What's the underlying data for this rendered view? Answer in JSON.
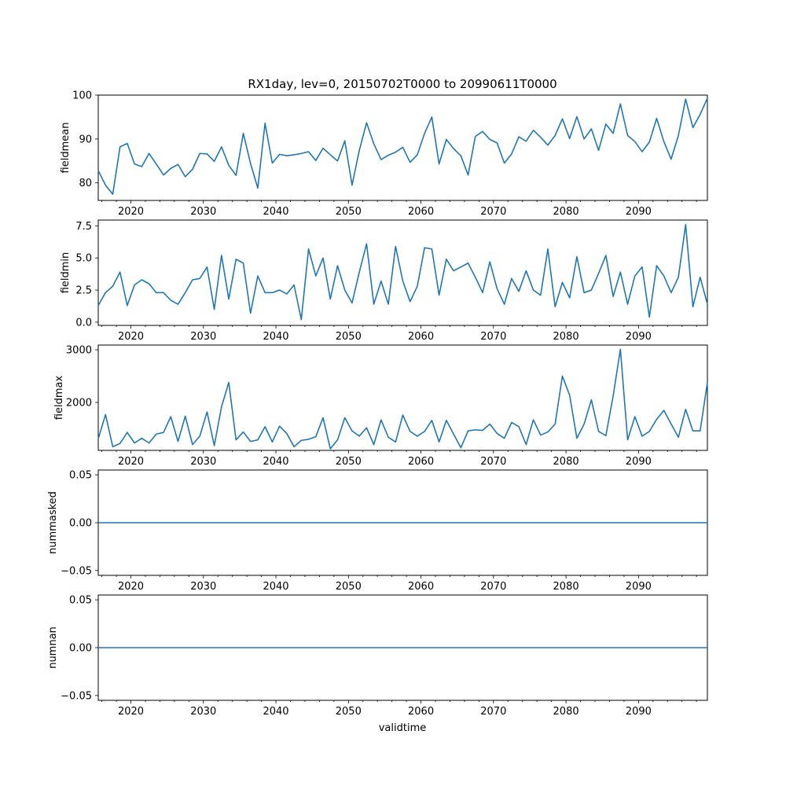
{
  "title": "RX1day, lev=0, 20150702T0000 to 20990611T0000",
  "xlabel": "validtime",
  "line_color": "#1f77b4",
  "chart_data": [
    {
      "type": "line",
      "ylabel": "fieldmean",
      "xlim": [
        2015.5,
        2099.5
      ],
      "ylim": [
        76,
        100
      ],
      "yticks": [
        80,
        90,
        100
      ],
      "ytick_labels": [
        "80",
        "90",
        "100"
      ],
      "xticks": [
        2020,
        2030,
        2040,
        2050,
        2060,
        2070,
        2080,
        2090
      ],
      "xtick_labels": [
        "2020",
        "2030",
        "2040",
        "2050",
        "2060",
        "2070",
        "2080",
        "2090"
      ],
      "x": [
        2015.5,
        2016.5,
        2017.5,
        2018.5,
        2019.5,
        2020.5,
        2021.5,
        2022.5,
        2023.5,
        2024.5,
        2025.5,
        2026.5,
        2027.5,
        2028.5,
        2029.5,
        2030.5,
        2031.5,
        2032.5,
        2033.5,
        2034.5,
        2035.5,
        2036.5,
        2037.5,
        2038.5,
        2039.5,
        2040.5,
        2041.5,
        2042.5,
        2043.5,
        2044.5,
        2045.5,
        2046.5,
        2047.5,
        2048.5,
        2049.5,
        2050.5,
        2051.5,
        2052.5,
        2053.5,
        2054.5,
        2055.5,
        2056.5,
        2057.5,
        2058.5,
        2059.5,
        2060.5,
        2061.5,
        2062.5,
        2063.5,
        2064.5,
        2065.5,
        2066.5,
        2067.5,
        2068.5,
        2069.5,
        2070.5,
        2071.5,
        2072.5,
        2073.5,
        2074.5,
        2075.5,
        2076.5,
        2077.5,
        2078.5,
        2079.5,
        2080.5,
        2081.5,
        2082.5,
        2083.5,
        2084.5,
        2085.5,
        2086.5,
        2087.5,
        2088.5,
        2089.5,
        2090.5,
        2091.5,
        2092.5,
        2093.5,
        2094.5,
        2095.5,
        2096.5,
        2097.5,
        2098.5,
        2099.5
      ],
      "values": [
        82.8,
        79.5,
        77.4,
        88.2,
        89.0,
        84.3,
        83.7,
        86.7,
        84.3,
        81.8,
        83.3,
        84.2,
        81.4,
        83.1,
        86.7,
        86.6,
        84.9,
        88.2,
        84.0,
        81.7,
        91.3,
        84.4,
        78.8,
        93.6,
        84.5,
        86.5,
        86.2,
        86.4,
        86.7,
        87.1,
        85.1,
        87.9,
        86.4,
        85.0,
        89.6,
        79.5,
        87.4,
        93.7,
        88.9,
        85.3,
        86.3,
        87.0,
        88.1,
        84.7,
        86.4,
        91.3,
        95.0,
        84.3,
        89.9,
        87.8,
        86.2,
        81.8,
        90.6,
        91.7,
        89.9,
        89.1,
        84.5,
        86.6,
        90.5,
        89.5,
        92.0,
        90.4,
        88.6,
        90.8,
        94.6,
        90.1,
        95.1,
        90.0,
        92.3,
        87.4,
        93.4,
        91.3,
        98.0,
        90.8,
        89.4,
        87.1,
        89.3,
        94.7,
        89.4,
        85.4,
        90.8,
        99.1,
        92.6,
        95.6,
        99.3
      ]
    },
    {
      "type": "line",
      "ylabel": "fieldmin",
      "xlim": [
        2015.5,
        2099.5
      ],
      "ylim": [
        -0.25,
        7.95
      ],
      "yticks": [
        0,
        2.5,
        5,
        7.5
      ],
      "ytick_labels": [
        "0.0",
        "2.5",
        "5.0",
        "7.5"
      ],
      "xticks": [
        2020,
        2030,
        2040,
        2050,
        2060,
        2070,
        2080,
        2090
      ],
      "xtick_labels": [
        "2020",
        "2030",
        "2040",
        "2050",
        "2060",
        "2070",
        "2080",
        "2090"
      ],
      "x": [
        2015.5,
        2016.5,
        2017.5,
        2018.5,
        2019.5,
        2020.5,
        2021.5,
        2022.5,
        2023.5,
        2024.5,
        2025.5,
        2026.5,
        2027.5,
        2028.5,
        2029.5,
        2030.5,
        2031.5,
        2032.5,
        2033.5,
        2034.5,
        2035.5,
        2036.5,
        2037.5,
        2038.5,
        2039.5,
        2040.5,
        2041.5,
        2042.5,
        2043.5,
        2044.5,
        2045.5,
        2046.5,
        2047.5,
        2048.5,
        2049.5,
        2050.5,
        2051.5,
        2052.5,
        2053.5,
        2054.5,
        2055.5,
        2056.5,
        2057.5,
        2058.5,
        2059.5,
        2060.5,
        2061.5,
        2062.5,
        2063.5,
        2064.5,
        2065.5,
        2066.5,
        2067.5,
        2068.5,
        2069.5,
        2070.5,
        2071.5,
        2072.5,
        2073.5,
        2074.5,
        2075.5,
        2076.5,
        2077.5,
        2078.5,
        2079.5,
        2080.5,
        2081.5,
        2082.5,
        2083.5,
        2084.5,
        2085.5,
        2086.5,
        2087.5,
        2088.5,
        2089.5,
        2090.5,
        2091.5,
        2092.5,
        2093.5,
        2094.5,
        2095.5,
        2096.5,
        2097.5,
        2098.5,
        2099.5
      ],
      "values": [
        1.3,
        2.3,
        2.8,
        3.9,
        1.3,
        2.9,
        3.3,
        3.0,
        2.3,
        2.3,
        1.7,
        1.4,
        2.3,
        3.3,
        3.4,
        4.3,
        1.0,
        5.2,
        1.8,
        4.9,
        4.6,
        0.7,
        3.6,
        2.3,
        2.3,
        2.5,
        2.2,
        2.9,
        0.2,
        5.7,
        3.6,
        5.0,
        1.8,
        4.4,
        2.5,
        1.5,
        3.9,
        6.1,
        1.4,
        3.2,
        1.4,
        5.9,
        3.2,
        1.6,
        2.8,
        5.8,
        5.7,
        2.1,
        4.9,
        4.0,
        4.3,
        4.6,
        3.5,
        2.3,
        4.7,
        2.6,
        1.4,
        3.4,
        2.4,
        4.0,
        2.5,
        2.1,
        5.7,
        1.2,
        3.1,
        1.9,
        5.1,
        2.3,
        2.5,
        3.8,
        5.2,
        2.0,
        3.9,
        1.4,
        3.6,
        4.3,
        0.4,
        4.4,
        3.6,
        2.3,
        3.5,
        7.6,
        1.2,
        3.5,
        1.4
      ]
    },
    {
      "type": "line",
      "ylabel": "fieldmax",
      "xlim": [
        2015.5,
        2099.5
      ],
      "ylim": [
        1090,
        3090
      ],
      "yticks": [
        2000,
        3000
      ],
      "ytick_labels": [
        "2000",
        "3000"
      ],
      "xticks": [
        2020,
        2030,
        2040,
        2050,
        2060,
        2070,
        2080,
        2090
      ],
      "xtick_labels": [
        "2020",
        "2030",
        "2040",
        "2050",
        "2060",
        "2070",
        "2080",
        "2090"
      ],
      "x": [
        2015.5,
        2016.5,
        2017.5,
        2018.5,
        2019.5,
        2020.5,
        2021.5,
        2022.5,
        2023.5,
        2024.5,
        2025.5,
        2026.5,
        2027.5,
        2028.5,
        2029.5,
        2030.5,
        2031.5,
        2032.5,
        2033.5,
        2034.5,
        2035.5,
        2036.5,
        2037.5,
        2038.5,
        2039.5,
        2040.5,
        2041.5,
        2042.5,
        2043.5,
        2044.5,
        2045.5,
        2046.5,
        2047.5,
        2048.5,
        2049.5,
        2050.5,
        2051.5,
        2052.5,
        2053.5,
        2054.5,
        2055.5,
        2056.5,
        2057.5,
        2058.5,
        2059.5,
        2060.5,
        2061.5,
        2062.5,
        2063.5,
        2064.5,
        2065.5,
        2066.5,
        2067.5,
        2068.5,
        2069.5,
        2070.5,
        2071.5,
        2072.5,
        2073.5,
        2074.5,
        2075.5,
        2076.5,
        2077.5,
        2078.5,
        2079.5,
        2080.5,
        2081.5,
        2082.5,
        2083.5,
        2084.5,
        2085.5,
        2086.5,
        2087.5,
        2088.5,
        2089.5,
        2090.5,
        2091.5,
        2092.5,
        2093.5,
        2094.5,
        2095.5,
        2096.5,
        2097.5,
        2098.5,
        2099.5
      ],
      "values": [
        1310,
        1770,
        1160,
        1220,
        1430,
        1230,
        1320,
        1230,
        1400,
        1430,
        1730,
        1260,
        1740,
        1200,
        1360,
        1820,
        1180,
        1920,
        2380,
        1290,
        1440,
        1260,
        1290,
        1540,
        1250,
        1550,
        1410,
        1160,
        1280,
        1300,
        1350,
        1710,
        1120,
        1290,
        1710,
        1460,
        1360,
        1520,
        1200,
        1670,
        1340,
        1250,
        1760,
        1450,
        1360,
        1450,
        1660,
        1250,
        1660,
        1400,
        1140,
        1460,
        1480,
        1470,
        1590,
        1410,
        1320,
        1620,
        1540,
        1200,
        1670,
        1380,
        1440,
        1590,
        2500,
        2140,
        1320,
        1590,
        2050,
        1450,
        1370,
        2120,
        3010,
        1290,
        1730,
        1360,
        1450,
        1680,
        1850,
        1590,
        1340,
        1870,
        1460,
        1460,
        2380
      ]
    },
    {
      "type": "line",
      "ylabel": "nummasked",
      "xlim": [
        2015.5,
        2099.5
      ],
      "ylim": [
        -0.055,
        0.055
      ],
      "yticks": [
        -0.05,
        0,
        0.05
      ],
      "ytick_labels": [
        "−0.05",
        "0.00",
        "0.05"
      ],
      "xticks": [
        2020,
        2030,
        2040,
        2050,
        2060,
        2070,
        2080,
        2090
      ],
      "xtick_labels": [
        "2020",
        "2030",
        "2040",
        "2050",
        "2060",
        "2070",
        "2080",
        "2090"
      ],
      "x": [
        2015.5,
        2099.5
      ],
      "values": [
        0,
        0
      ]
    },
    {
      "type": "line",
      "ylabel": "numnan",
      "xlim": [
        2015.5,
        2099.5
      ],
      "ylim": [
        -0.055,
        0.055
      ],
      "yticks": [
        -0.05,
        0,
        0.05
      ],
      "ytick_labels": [
        "−0.05",
        "0.00",
        "0.05"
      ],
      "xticks": [
        2020,
        2030,
        2040,
        2050,
        2060,
        2070,
        2080,
        2090
      ],
      "xtick_labels": [
        "2020",
        "2030",
        "2040",
        "2050",
        "2060",
        "2070",
        "2080",
        "2090"
      ],
      "x": [
        2015.5,
        2099.5
      ],
      "values": [
        0,
        0
      ]
    }
  ]
}
